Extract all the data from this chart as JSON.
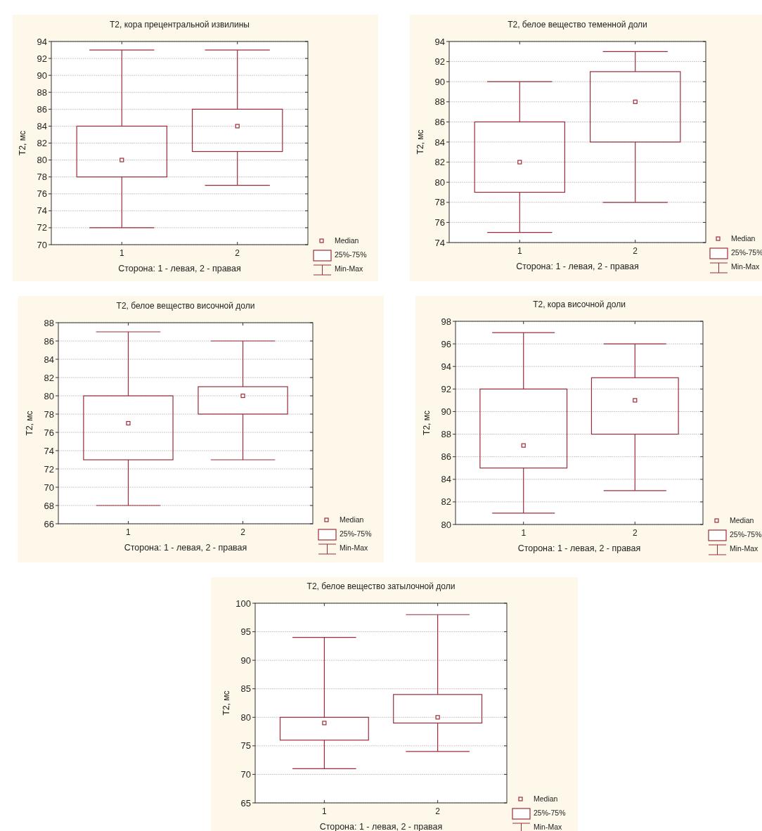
{
  "chart_data": [
    {
      "type": "box",
      "title": "T2, кора прецентральной извилины",
      "xlabel": "Сторона: 1 - левая, 2 - правая",
      "ylabel": "T2, мс",
      "categories": [
        "1",
        "2"
      ],
      "ylim": [
        70,
        94
      ],
      "yticks": [
        70,
        72,
        74,
        76,
        78,
        80,
        82,
        84,
        86,
        88,
        90,
        92,
        94
      ],
      "grid": "y",
      "annotations": [
        "Median",
        "25%-75%",
        "Min-Max"
      ],
      "series": [
        {
          "color": "#9b2d3a",
          "boxes": [
            {
              "low": 72,
              "q1": 78,
              "median": 80,
              "q3": 84,
              "high": 93
            },
            {
              "low": 77,
              "q1": 81,
              "median": 84,
              "q3": 86,
              "high": 93
            }
          ]
        }
      ]
    },
    {
      "type": "box",
      "title": "T2, белое вещество теменной доли",
      "xlabel": "Сторона: 1 - левая, 2 - правая",
      "ylabel": "T2, мс",
      "categories": [
        "1",
        "2"
      ],
      "ylim": [
        74,
        94
      ],
      "yticks": [
        74,
        76,
        78,
        80,
        82,
        84,
        86,
        88,
        90,
        92,
        94
      ],
      "grid": "y",
      "annotations": [
        "Median",
        "25%-75%",
        "Min-Max"
      ],
      "series": [
        {
          "color": "#9b2d3a",
          "boxes": [
            {
              "low": 75,
              "q1": 79,
              "median": 82,
              "q3": 86,
              "high": 90
            },
            {
              "low": 78,
              "q1": 84,
              "median": 88,
              "q3": 91,
              "high": 93
            }
          ]
        }
      ]
    },
    {
      "type": "box",
      "title": "T2, белое вещество височной доли",
      "xlabel": "Сторона: 1 - левая, 2 - правая",
      "ylabel": "T2, мс",
      "categories": [
        "1",
        "2"
      ],
      "ylim": [
        66,
        88
      ],
      "yticks": [
        66,
        68,
        70,
        72,
        74,
        76,
        78,
        80,
        82,
        84,
        86,
        88
      ],
      "grid": "y",
      "annotations": [
        "Median",
        "25%-75%",
        "Min-Max"
      ],
      "series": [
        {
          "color": "#9b2d3a",
          "boxes": [
            {
              "low": 68,
              "q1": 73,
              "median": 77,
              "q3": 80,
              "high": 87
            },
            {
              "low": 73,
              "q1": 78,
              "median": 80,
              "q3": 81,
              "high": 86
            }
          ]
        }
      ]
    },
    {
      "type": "box",
      "title": "T2, кора височной доли",
      "xlabel": "Сторона: 1 - левая, 2 - правая",
      "ylabel": "T2, мс",
      "categories": [
        "1",
        "2"
      ],
      "ylim": [
        80,
        98
      ],
      "yticks": [
        80,
        82,
        84,
        86,
        88,
        90,
        92,
        94,
        96,
        98
      ],
      "grid": "y",
      "annotations": [
        "Median",
        "25%-75%",
        "Min-Max"
      ],
      "series": [
        {
          "color": "#9b2d3a",
          "boxes": [
            {
              "low": 81,
              "q1": 85,
              "median": 87,
              "q3": 92,
              "high": 97
            },
            {
              "low": 83,
              "q1": 88,
              "median": 91,
              "q3": 93,
              "high": 96
            }
          ]
        }
      ]
    },
    {
      "type": "box",
      "title": "T2, белое вещество затылочной доли",
      "xlabel": "Сторона: 1 - левая, 2 - правая",
      "ylabel": "T2, мс",
      "categories": [
        "1",
        "2"
      ],
      "ylim": [
        65,
        100
      ],
      "yticks": [
        65,
        70,
        75,
        80,
        85,
        90,
        95,
        100
      ],
      "grid": "y",
      "annotations": [
        "Median",
        "25%-75%",
        "Min-Max"
      ],
      "series": [
        {
          "color": "#9b2d3a",
          "boxes": [
            {
              "low": 71,
              "q1": 76,
              "median": 79,
              "q3": 80,
              "high": 94
            },
            {
              "low": 74,
              "q1": 79,
              "median": 80,
              "q3": 84,
              "high": 98
            }
          ]
        }
      ]
    }
  ]
}
